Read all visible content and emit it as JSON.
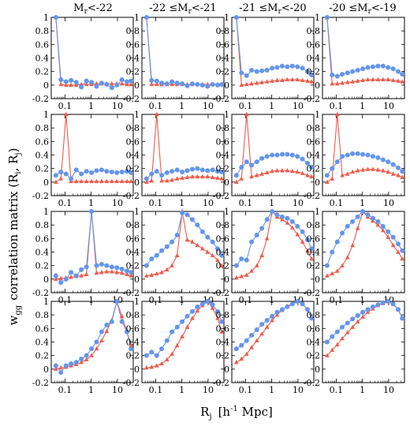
{
  "figure": {
    "y_label": "w",
    "y_label_sub": "gg",
    "y_label_rest": "correlation matrix (R",
    "y_label_i": "i",
    "y_label_comma": ", R",
    "y_label_j": "j",
    "y_label_close": ")",
    "x_label_main": "R",
    "x_label_sub": "j",
    "x_label_units": "[h",
    "x_label_exp": "-1",
    "x_label_units_end": " Mpc]",
    "column_titles": [
      {
        "pre": "M",
        "sub": "r",
        "post": "<-22"
      },
      {
        "pre": "-22 ≤M",
        "sub": "r",
        "post": "<-21"
      },
      {
        "pre": "-21 ≤M",
        "sub": "r",
        "post": "<-20"
      },
      {
        "pre": "-20 ≤M",
        "sub": "r",
        "post": "<-19"
      }
    ],
    "colors": {
      "series_blue": "#6495ed",
      "series_red": "#f05a4a",
      "frame": "#000000"
    }
  },
  "chart_data": {
    "type": "line",
    "layout": "4x4 grid of panels (rows = R_i bins, columns = magnitude bins)",
    "x_scale": "log",
    "xlim": [
      0.03,
      40
    ],
    "ylim": [
      -0.2,
      1.0
    ],
    "x_ticks": [
      0.1,
      1,
      10
    ],
    "x_tick_labels": [
      "0.1",
      "1",
      "10"
    ],
    "y_ticks": [
      -0.2,
      0,
      0.2,
      0.4,
      0.6,
      0.8,
      1
    ],
    "y_tick_labels": [
      "-0.2",
      "0",
      "0.2",
      "0.4",
      "0.6",
      "0.8",
      "1"
    ],
    "x": [
      0.045,
      0.07,
      0.11,
      0.17,
      0.27,
      0.42,
      0.66,
      1.03,
      1.6,
      2.5,
      3.9,
      6.1,
      9.5,
      14.8,
      23,
      33
    ],
    "panels": [
      [
        {
          "blue": [
            1.0,
            0.08,
            0.05,
            0.07,
            0.04,
            -0.03,
            0.06,
            0.04,
            -0.02,
            0.03,
            0.01,
            -0.04,
            0.0,
            0.08,
            0.05,
            0.06
          ],
          "red": [
            1.0,
            0.01,
            0.0,
            0.0,
            0.0,
            0.01,
            0.01,
            0.01,
            0.02,
            0.02,
            0.02,
            0.02,
            0.02,
            0.02,
            0.01,
            0.01
          ]
        },
        {
          "blue": [
            1.0,
            0.07,
            0.06,
            0.03,
            0.02,
            0.05,
            0.03,
            0.02,
            -0.01,
            0.02,
            0.01,
            0.0,
            -0.02,
            0.01,
            0.0,
            0.01
          ],
          "red": [
            1.0,
            0.01,
            0.01,
            0.01,
            0.01,
            0.01,
            0.01,
            0.01,
            0.01,
            0.01,
            0.01,
            0.01,
            0.01,
            0.01,
            0.01,
            0.01
          ]
        },
        {
          "blue": [
            1.0,
            0.18,
            0.14,
            0.22,
            0.2,
            0.21,
            0.22,
            0.25,
            0.26,
            0.28,
            0.27,
            0.28,
            0.27,
            0.25,
            0.2,
            0.15
          ],
          "red": [
            1.0,
            0.0,
            0.01,
            0.02,
            0.03,
            0.04,
            0.05,
            0.06,
            0.07,
            0.07,
            0.08,
            0.08,
            0.08,
            0.07,
            0.06,
            0.05
          ]
        },
        {
          "blue": [
            1.0,
            0.15,
            0.13,
            0.16,
            0.18,
            0.2,
            0.22,
            0.24,
            0.26,
            0.27,
            0.28,
            0.28,
            0.26,
            0.24,
            0.2,
            0.16
          ],
          "red": [
            1.0,
            0.02,
            0.02,
            0.03,
            0.04,
            0.05,
            0.06,
            0.07,
            0.08,
            0.08,
            0.08,
            0.08,
            0.08,
            0.07,
            0.06,
            0.05
          ]
        }
      ],
      [
        {
          "blue": [
            0.1,
            0.15,
            0.12,
            0.05,
            0.18,
            0.12,
            0.16,
            0.14,
            0.17,
            0.18,
            0.16,
            0.15,
            0.14,
            0.15,
            0.16,
            0.14
          ],
          "red": [
            0.0,
            0.05,
            1.0,
            0.01,
            0.01,
            0.01,
            0.01,
            0.01,
            0.01,
            0.01,
            0.01,
            0.01,
            0.01,
            0.01,
            0.01,
            0.01
          ]
        },
        {
          "blue": [
            0.05,
            0.12,
            0.16,
            0.1,
            0.14,
            0.16,
            0.18,
            0.15,
            0.17,
            0.19,
            0.2,
            0.18,
            0.17,
            0.18,
            0.16,
            0.15
          ],
          "red": [
            0.0,
            0.02,
            1.0,
            0.02,
            0.02,
            0.03,
            0.05,
            0.06,
            0.07,
            0.08,
            0.08,
            0.08,
            0.08,
            0.07,
            0.06,
            0.05
          ]
        },
        {
          "blue": [
            0.1,
            0.22,
            0.3,
            0.25,
            0.3,
            0.35,
            0.38,
            0.4,
            0.4,
            0.41,
            0.41,
            0.4,
            0.38,
            0.34,
            0.28,
            0.22
          ],
          "red": [
            0.0,
            0.05,
            1.0,
            0.08,
            0.1,
            0.12,
            0.14,
            0.16,
            0.17,
            0.17,
            0.17,
            0.16,
            0.15,
            0.13,
            0.1,
            0.08
          ]
        },
        {
          "blue": [
            0.1,
            0.2,
            0.3,
            0.38,
            0.4,
            0.42,
            0.42,
            0.41,
            0.4,
            0.38,
            0.36,
            0.33,
            0.3,
            0.26,
            0.21,
            0.16
          ],
          "red": [
            0.0,
            0.05,
            1.0,
            0.1,
            0.12,
            0.15,
            0.17,
            0.18,
            0.19,
            0.19,
            0.18,
            0.17,
            0.15,
            0.12,
            0.1,
            0.07
          ]
        }
      ],
      [
        {
          "blue": [
            0.05,
            -0.05,
            0.0,
            0.1,
            0.05,
            0.14,
            0.18,
            1.0,
            0.2,
            0.22,
            0.2,
            0.18,
            0.17,
            0.15,
            0.12,
            0.1
          ],
          "red": [
            0.0,
            0.01,
            0.02,
            0.03,
            0.04,
            0.05,
            0.07,
            1.0,
            0.09,
            0.1,
            0.11,
            0.11,
            0.1,
            0.09,
            0.07,
            0.05
          ]
        },
        {
          "blue": [
            0.2,
            0.3,
            0.35,
            0.42,
            0.48,
            0.55,
            0.65,
            0.98,
            0.95,
            0.88,
            0.8,
            0.7,
            0.62,
            0.55,
            0.45,
            0.35
          ],
          "red": [
            0.05,
            0.06,
            0.08,
            0.1,
            0.14,
            0.2,
            0.35,
            1.0,
            0.58,
            0.55,
            0.5,
            0.45,
            0.4,
            0.35,
            0.28,
            0.2
          ]
        },
        {
          "blue": [
            0.2,
            0.3,
            0.28,
            0.55,
            0.65,
            0.75,
            0.88,
            1.0,
            0.95,
            0.92,
            0.9,
            0.85,
            0.78,
            0.7,
            0.58,
            0.45
          ],
          "red": [
            0.02,
            0.04,
            0.06,
            0.12,
            0.2,
            0.35,
            0.6,
            1.0,
            0.92,
            0.88,
            0.83,
            0.76,
            0.66,
            0.55,
            0.42,
            0.3
          ]
        },
        {
          "blue": [
            0.2,
            0.4,
            0.55,
            0.68,
            0.78,
            0.85,
            0.92,
            1.0,
            0.95,
            0.9,
            0.85,
            0.78,
            0.7,
            0.62,
            0.52,
            0.42
          ],
          "red": [
            0.05,
            0.08,
            0.12,
            0.2,
            0.32,
            0.5,
            0.75,
            1.0,
            0.92,
            0.86,
            0.8,
            0.72,
            0.62,
            0.5,
            0.4,
            0.3
          ]
        }
      ],
      [
        {
          "blue": [
            0.05,
            -0.05,
            0.05,
            0.08,
            0.1,
            0.15,
            0.2,
            0.3,
            0.4,
            0.55,
            0.65,
            0.7,
            1.0,
            0.7,
            0.55,
            0.3
          ],
          "red": [
            0.0,
            0.02,
            0.03,
            0.05,
            0.07,
            0.1,
            0.14,
            0.2,
            0.3,
            0.42,
            0.56,
            0.72,
            1.0,
            0.78,
            0.55,
            0.35
          ]
        },
        {
          "blue": [
            0.2,
            0.25,
            0.2,
            0.3,
            0.42,
            0.55,
            0.62,
            0.7,
            0.78,
            0.85,
            0.92,
            0.96,
            1.0,
            0.95,
            0.85,
            0.7
          ],
          "red": [
            0.02,
            0.03,
            0.05,
            0.08,
            0.14,
            0.22,
            0.35,
            0.48,
            0.62,
            0.75,
            0.86,
            0.94,
            1.0,
            0.9,
            0.75,
            0.55
          ]
        },
        {
          "blue": [
            0.3,
            0.35,
            0.42,
            0.5,
            0.58,
            0.66,
            0.72,
            0.78,
            0.84,
            0.88,
            0.92,
            0.96,
            1.0,
            0.96,
            0.88,
            0.75
          ],
          "red": [
            0.1,
            0.15,
            0.22,
            0.32,
            0.42,
            0.52,
            0.62,
            0.72,
            0.8,
            0.87,
            0.93,
            0.97,
            1.0,
            0.96,
            0.88,
            0.75
          ]
        },
        {
          "blue": [
            0.4,
            0.48,
            0.55,
            0.62,
            0.68,
            0.74,
            0.79,
            0.84,
            0.88,
            0.92,
            0.95,
            0.98,
            1.0,
            0.96,
            0.88,
            0.75
          ],
          "red": [
            0.2,
            0.28,
            0.36,
            0.45,
            0.54,
            0.62,
            0.7,
            0.77,
            0.84,
            0.89,
            0.94,
            0.97,
            1.0,
            0.96,
            0.88,
            0.75
          ]
        }
      ]
    ]
  }
}
